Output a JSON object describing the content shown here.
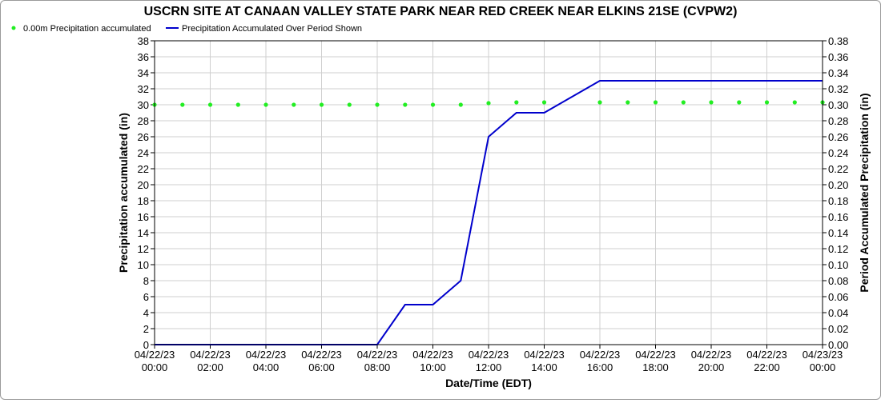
{
  "chart_data": {
    "type": "line",
    "title": "USCRN SITE AT CANAAN VALLEY STATE PARK NEAR RED CREEK NEAR ELKINS 21SE (CVPW2)",
    "xlabel": "Date/Time (EDT)",
    "ylabel": "Precipitation accumulated (in)",
    "ylabel_right": "Period Accumulated Precipitation (in)",
    "ylim": [
      0,
      38
    ],
    "ylim_right": [
      0,
      0.38
    ],
    "y_ticks": [
      "0",
      "2",
      "4",
      "6",
      "8",
      "10",
      "12",
      "14",
      "16",
      "18",
      "20",
      "22",
      "24",
      "26",
      "28",
      "30",
      "32",
      "34",
      "36",
      "38"
    ],
    "y_ticks_right": [
      "0.00",
      "0.02",
      "0.04",
      "0.06",
      "0.08",
      "0.10",
      "0.12",
      "0.14",
      "0.16",
      "0.18",
      "0.20",
      "0.22",
      "0.24",
      "0.26",
      "0.28",
      "0.30",
      "0.32",
      "0.34",
      "0.36",
      "0.38"
    ],
    "x_ticks": [
      {
        "hour": 0,
        "date": "04/22/23",
        "time": "00:00"
      },
      {
        "hour": 2,
        "date": "04/22/23",
        "time": "02:00"
      },
      {
        "hour": 4,
        "date": "04/22/23",
        "time": "04:00"
      },
      {
        "hour": 6,
        "date": "04/22/23",
        "time": "06:00"
      },
      {
        "hour": 8,
        "date": "04/22/23",
        "time": "08:00"
      },
      {
        "hour": 10,
        "date": "04/22/23",
        "time": "10:00"
      },
      {
        "hour": 12,
        "date": "04/22/23",
        "time": "12:00"
      },
      {
        "hour": 14,
        "date": "04/22/23",
        "time": "14:00"
      },
      {
        "hour": 16,
        "date": "04/22/23",
        "time": "16:00"
      },
      {
        "hour": 18,
        "date": "04/22/23",
        "time": "18:00"
      },
      {
        "hour": 20,
        "date": "04/22/23",
        "time": "20:00"
      },
      {
        "hour": 22,
        "date": "04/22/23",
        "time": "22:00"
      },
      {
        "hour": 24,
        "date": "04/23/23",
        "time": "00:00"
      }
    ],
    "grid": true,
    "legend": "top-left",
    "series": [
      {
        "name": "0.00m Precipitation accumulated",
        "axis": "left",
        "style": "markers",
        "color": "#22ee22",
        "x": [
          0,
          1,
          2,
          3,
          4,
          5,
          6,
          7,
          8,
          9,
          10,
          11,
          12,
          13,
          14,
          16,
          17,
          18,
          19,
          20,
          21,
          22,
          23,
          24
        ],
        "values": [
          30.0,
          30.0,
          30.0,
          30.0,
          30.0,
          30.0,
          30.0,
          30.0,
          30.0,
          30.0,
          30.0,
          30.0,
          30.2,
          30.3,
          30.3,
          30.3,
          30.3,
          30.3,
          30.3,
          30.3,
          30.3,
          30.3,
          30.3,
          30.3
        ]
      },
      {
        "name": "Precipitation Accumulated Over Period Shown",
        "axis": "right",
        "style": "line",
        "color": "#0000cc",
        "x": [
          0,
          8,
          9,
          10,
          11,
          12,
          13,
          14,
          16,
          24
        ],
        "values": [
          0.0,
          0.0,
          0.05,
          0.05,
          0.08,
          0.26,
          0.29,
          0.29,
          0.33,
          0.33
        ]
      }
    ]
  }
}
